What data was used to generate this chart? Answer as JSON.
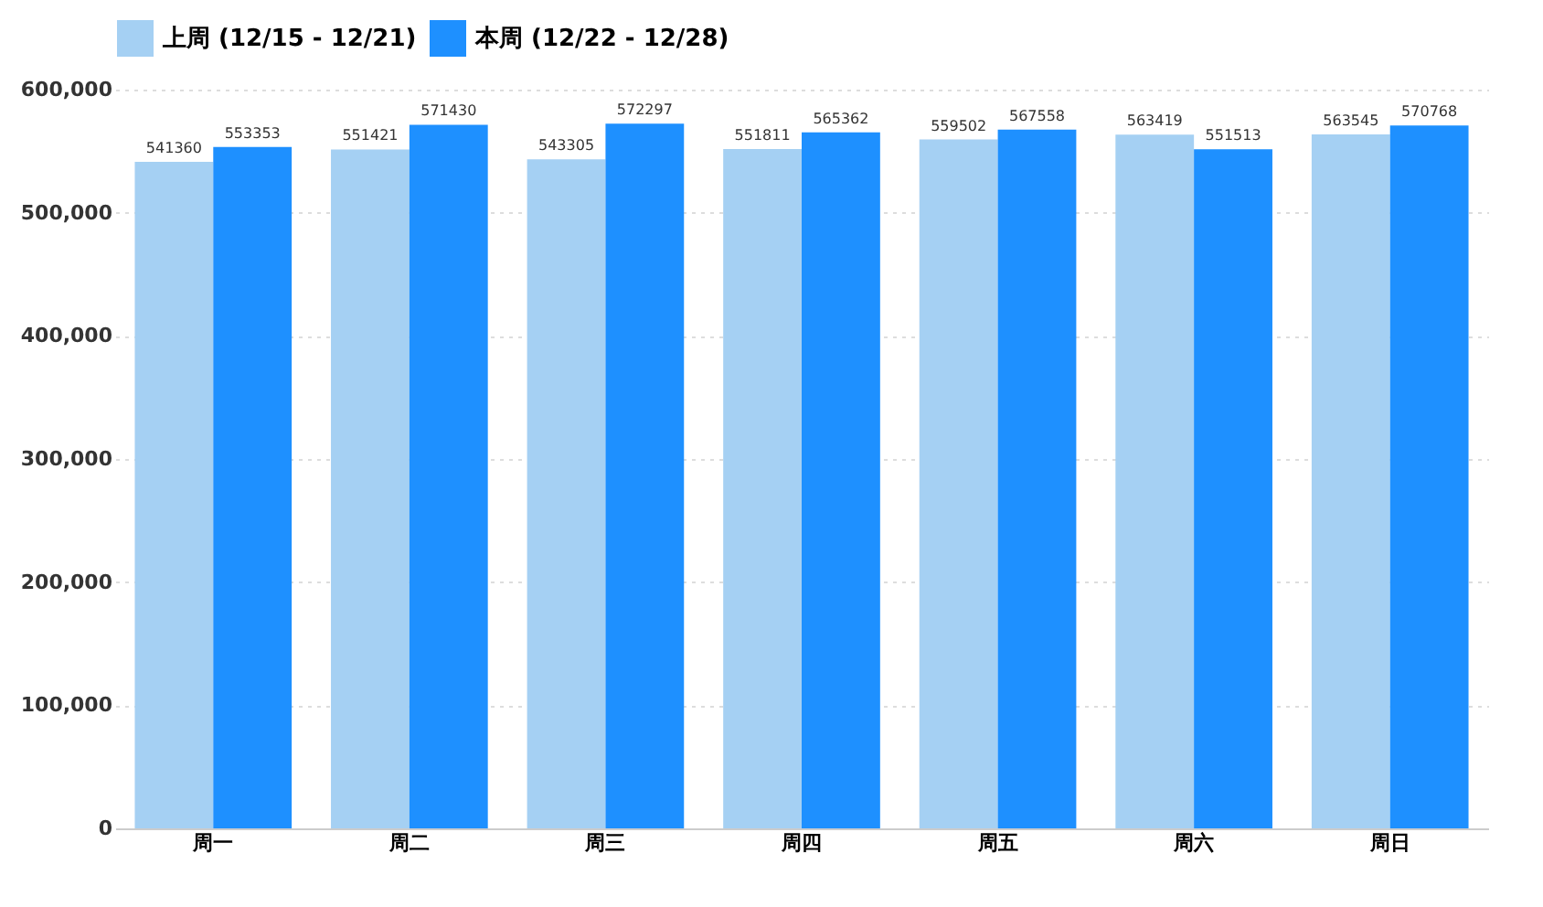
{
  "chart_data": {
    "type": "bar",
    "categories": [
      "周一",
      "周二",
      "周三",
      "周四",
      "周五",
      "周六",
      "周日"
    ],
    "series": [
      {
        "name": "上周 (12/15 - 12/21)",
        "color": "#a5d0f3",
        "values": [
          541360,
          551421,
          543305,
          551811,
          559502,
          563419,
          563545
        ]
      },
      {
        "name": "本周 (12/22 - 12/28)",
        "color": "#1e90ff",
        "values": [
          553353,
          571430,
          572297,
          565362,
          567558,
          551513,
          570768
        ]
      }
    ],
    "ylim": [
      0,
      600000
    ],
    "yticks": [
      {
        "value": 0,
        "label": "0"
      },
      {
        "value": 100000,
        "label": "100,000"
      },
      {
        "value": 200000,
        "label": "200,000"
      },
      {
        "value": 300000,
        "label": "300,000"
      },
      {
        "value": 400000,
        "label": "400,000"
      },
      {
        "value": 500000,
        "label": "500,000"
      },
      {
        "value": 600000,
        "label": "600,000"
      }
    ],
    "grid": "y",
    "legend": "top",
    "data_labels": true
  }
}
